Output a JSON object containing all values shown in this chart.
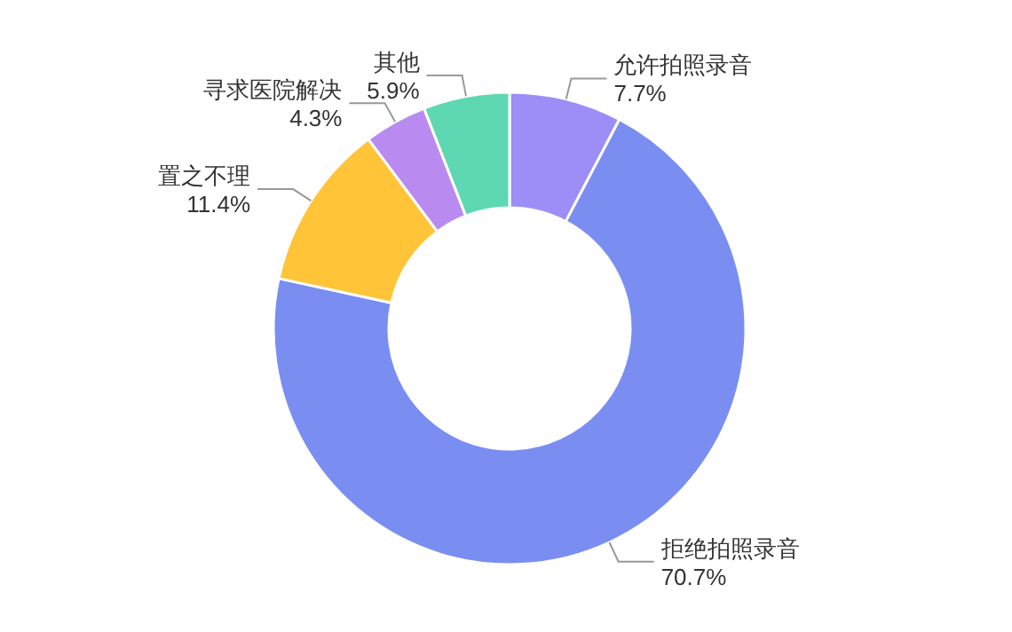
{
  "chart_data": {
    "type": "donut",
    "categories": [
      "允许拍照录音",
      "拒绝拍照录音",
      "置之不理",
      "寻求医院解决",
      "其他"
    ],
    "values": [
      7.7,
      70.7,
      11.4,
      4.3,
      5.9
    ],
    "value_labels": [
      "7.7%",
      "70.7%",
      "11.4%",
      "4.3%",
      "5.9%"
    ],
    "colors": [
      "#9d8df6",
      "#7a8ef2",
      "#ffc438",
      "#b98bf1",
      "#5dd8b2"
    ]
  }
}
